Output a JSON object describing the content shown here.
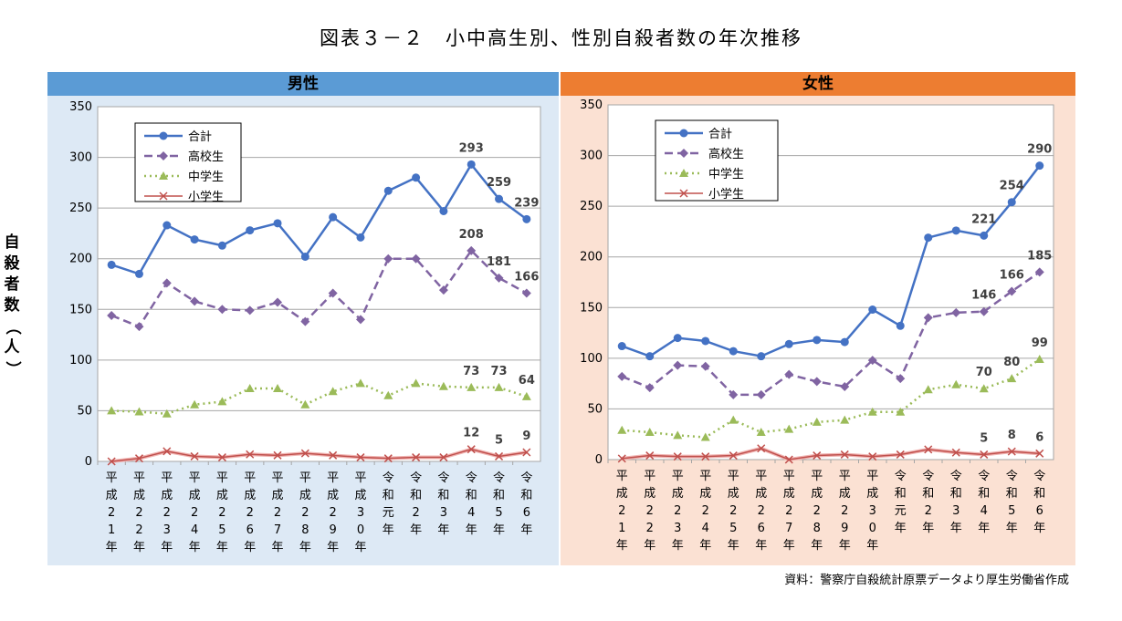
{
  "title": "図表３－２　小中高生別、性別自殺者数の年次推移",
  "source": "資料：警察庁自殺統計原票データより厚生労働省作成",
  "chart_data": [
    {
      "type": "line",
      "title": "男性",
      "ylabel": "自殺者数（人）",
      "ylim": [
        0,
        350
      ],
      "yticks": [
        0,
        50,
        100,
        150,
        200,
        250,
        300,
        350
      ],
      "grid": true,
      "legend_position": "top-left",
      "categories": [
        "平成21年",
        "平成22年",
        "平成23年",
        "平成24年",
        "平成25年",
        "平成26年",
        "平成27年",
        "平成28年",
        "平成29年",
        "平成30年",
        "令和元年",
        "令和2年",
        "令和3年",
        "令和4年",
        "令和5年",
        "令和6年"
      ],
      "series": [
        {
          "name": "合計",
          "color": "#4472c4",
          "values": [
            194,
            185,
            233,
            219,
            213,
            228,
            235,
            202,
            241,
            221,
            267,
            280,
            247,
            293,
            259,
            239
          ],
          "labels": {
            "13": "293",
            "14": "259",
            "15": "239"
          }
        },
        {
          "name": "高校生",
          "color": "#8064a2",
          "values": [
            144,
            133,
            176,
            158,
            150,
            149,
            157,
            138,
            166,
            140,
            200,
            200,
            169,
            208,
            181,
            166
          ],
          "labels": {
            "13": "208",
            "14": "181",
            "15": "166"
          }
        },
        {
          "name": "中学生",
          "color": "#9bbb59",
          "values": [
            50,
            49,
            47,
            56,
            59,
            72,
            72,
            56,
            69,
            77,
            65,
            77,
            74,
            73,
            73,
            64
          ],
          "labels": {
            "13": "73",
            "14": "73",
            "15": "64"
          }
        },
        {
          "name": "小学生",
          "color": "#c0504d",
          "values": [
            0,
            3,
            10,
            5,
            4,
            7,
            6,
            8,
            6,
            4,
            3,
            4,
            4,
            12,
            5,
            9
          ],
          "labels": {
            "13": "12",
            "14": "5",
            "15": "9"
          }
        }
      ]
    },
    {
      "type": "line",
      "title": "女性",
      "ylim": [
        0,
        350
      ],
      "yticks": [
        0,
        50,
        100,
        150,
        200,
        250,
        300,
        350
      ],
      "grid": true,
      "legend_position": "top-left",
      "categories": [
        "平成21年",
        "平成22年",
        "平成23年",
        "平成24年",
        "平成25年",
        "平成26年",
        "平成27年",
        "平成28年",
        "平成29年",
        "平成30年",
        "令和元年",
        "令和2年",
        "令和3年",
        "令和4年",
        "令和5年",
        "令和6年"
      ],
      "series": [
        {
          "name": "合計",
          "color": "#4472c4",
          "values": [
            112,
            102,
            120,
            117,
            107,
            102,
            114,
            118,
            116,
            148,
            132,
            219,
            226,
            221,
            254,
            290
          ],
          "labels": {
            "13": "221",
            "14": "254",
            "15": "290"
          }
        },
        {
          "name": "高校生",
          "color": "#8064a2",
          "values": [
            82,
            71,
            93,
            92,
            64,
            64,
            84,
            77,
            72,
            98,
            80,
            140,
            145,
            146,
            166,
            185
          ],
          "labels": {
            "13": "146",
            "14": "166",
            "15": "185"
          }
        },
        {
          "name": "中学生",
          "color": "#9bbb59",
          "values": [
            29,
            27,
            24,
            22,
            39,
            27,
            30,
            37,
            39,
            47,
            47,
            69,
            74,
            70,
            80,
            99
          ],
          "labels": {
            "13": "70",
            "14": "80",
            "15": "99"
          }
        },
        {
          "name": "小学生",
          "color": "#c0504d",
          "values": [
            1,
            4,
            3,
            3,
            4,
            11,
            0,
            4,
            5,
            3,
            5,
            10,
            7,
            5,
            8,
            6
          ],
          "labels": {
            "13": "5",
            "14": "8",
            "15": "6"
          }
        }
      ]
    }
  ],
  "xtick_labels": [
    [
      "平",
      "成",
      "2",
      "1",
      "年"
    ],
    [
      "平",
      "成",
      "2",
      "2",
      "年"
    ],
    [
      "平",
      "成",
      "2",
      "3",
      "年"
    ],
    [
      "平",
      "成",
      "2",
      "4",
      "年"
    ],
    [
      "平",
      "成",
      "2",
      "5",
      "年"
    ],
    [
      "平",
      "成",
      "2",
      "6",
      "年"
    ],
    [
      "平",
      "成",
      "2",
      "7",
      "年"
    ],
    [
      "平",
      "成",
      "2",
      "8",
      "年"
    ],
    [
      "平",
      "成",
      "2",
      "9",
      "年"
    ],
    [
      "平",
      "成",
      "3",
      "0",
      "年"
    ],
    [
      "令",
      "和",
      "元",
      "年"
    ],
    [
      "令",
      "和",
      "2",
      "年"
    ],
    [
      "令",
      "和",
      "3",
      "年"
    ],
    [
      "令",
      "和",
      "4",
      "年"
    ],
    [
      "令",
      "和",
      "5",
      "年"
    ],
    [
      "令",
      "和",
      "6",
      "年"
    ]
  ]
}
